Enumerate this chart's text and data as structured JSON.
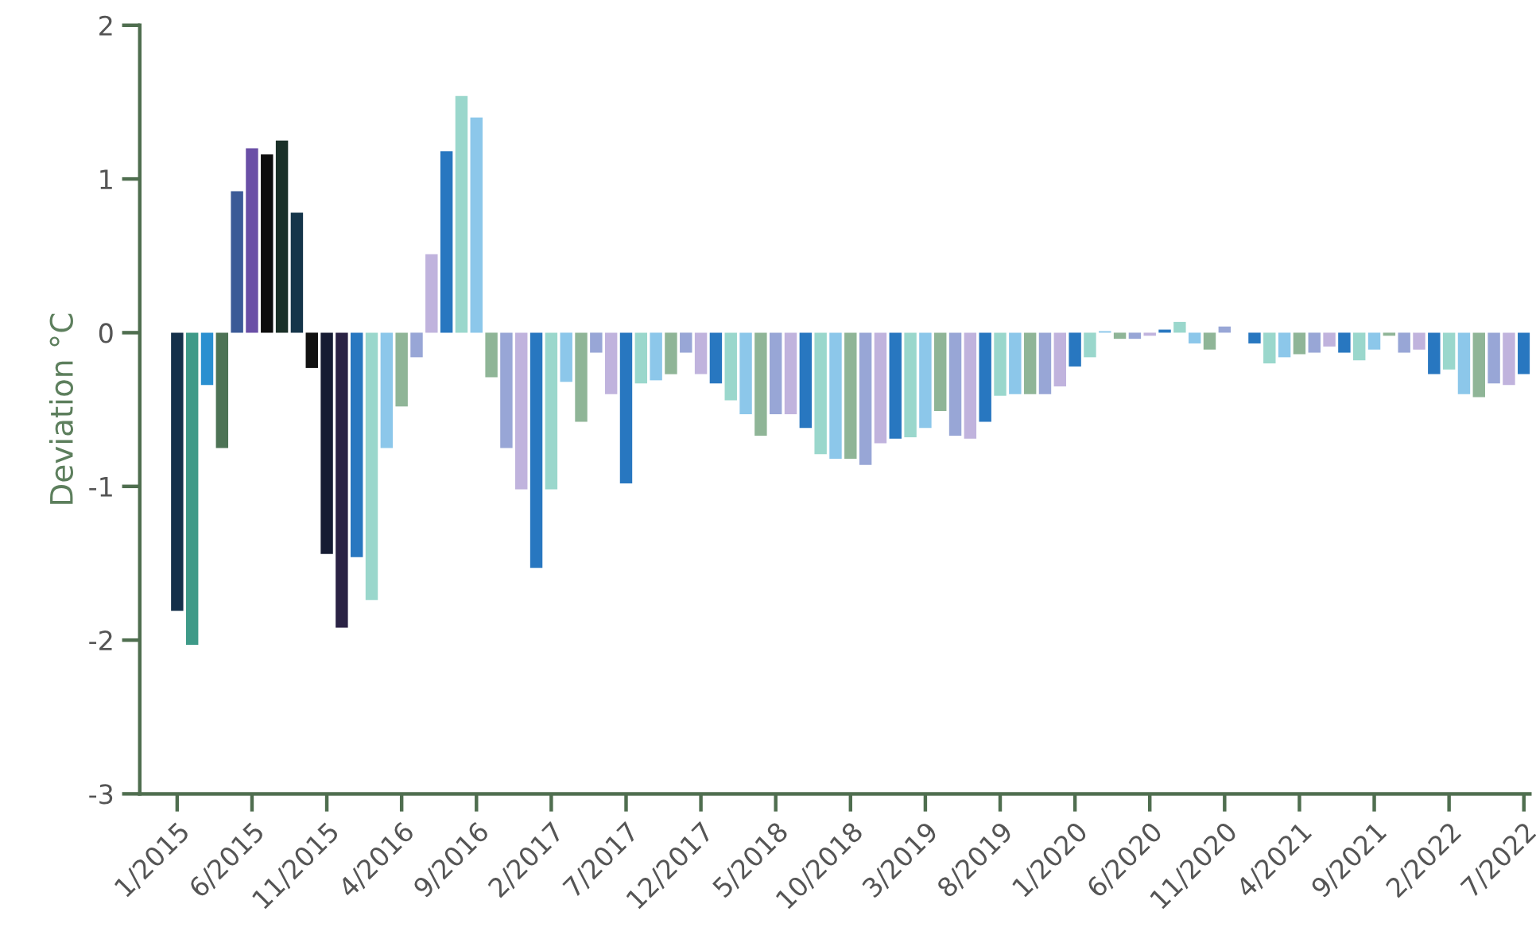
{
  "chart_data": {
    "type": "bar",
    "ylabel": "Deviation °C",
    "categories": [
      "1/2015",
      null,
      null,
      null,
      null,
      "6/2015",
      null,
      null,
      null,
      null,
      "11/2015",
      null,
      null,
      null,
      null,
      "4/2016",
      null,
      null,
      null,
      null,
      "9/2016",
      null,
      null,
      null,
      null,
      "2/2017",
      null,
      null,
      null,
      null,
      "7/2017",
      null,
      null,
      null,
      null,
      "12/2017",
      null,
      null,
      null,
      null,
      "5/2018",
      null,
      null,
      null,
      null,
      "10/2018",
      null,
      null,
      null,
      null,
      "3/2019",
      null,
      null,
      null,
      null,
      "8/2019",
      null,
      null,
      null,
      null,
      "1/2020",
      null,
      null,
      null,
      null,
      "6/2020",
      null,
      null,
      null,
      null,
      "11/2020",
      null,
      null,
      null,
      null,
      "4/2021",
      null,
      null,
      null,
      null,
      "9/2021",
      null,
      null,
      null,
      null,
      "2/2022",
      null,
      null,
      null,
      null,
      "7/2022"
    ],
    "values": [
      -1.81,
      -2.03,
      -0.34,
      -0.75,
      0.92,
      1.2,
      1.16,
      1.25,
      0.78,
      -0.23,
      -1.44,
      -1.92,
      -1.46,
      -1.74,
      -0.75,
      -0.48,
      -0.16,
      0.51,
      1.18,
      1.54,
      1.4,
      -0.29,
      -0.75,
      -1.02,
      -1.53,
      -1.02,
      -0.32,
      -0.58,
      -0.13,
      -0.4,
      -0.98,
      -0.33,
      -0.31,
      -0.27,
      -0.13,
      -0.27,
      -0.33,
      -0.44,
      -0.53,
      -0.67,
      -0.53,
      -0.53,
      -0.62,
      -0.79,
      -0.82,
      -0.82,
      -0.86,
      -0.72,
      -0.69,
      -0.68,
      -0.62,
      -0.51,
      -0.67,
      -0.69,
      -0.58,
      -0.41,
      -0.4,
      -0.4,
      -0.4,
      -0.35,
      -0.22,
      -0.16,
      0.01,
      -0.04,
      -0.04,
      -0.02,
      0.02,
      0.07,
      -0.07,
      -0.11,
      0.04,
      0,
      -0.07,
      -0.2,
      -0.16,
      -0.14,
      -0.13,
      -0.09,
      -0.13,
      -0.18,
      -0.11,
      -0.02,
      -0.13,
      -0.11,
      -0.27,
      -0.24,
      -0.4,
      -0.42,
      -0.33,
      -0.34,
      -0.27
    ],
    "colors": [
      "#14304a",
      "#3e9a88",
      "#2a8fd0",
      "#4d7355",
      "#3b5a97",
      "#6a4fa6",
      "#0d0d0d",
      "#1a3028",
      "#15354a",
      "#111111",
      "#161c33",
      "#2a2244",
      "#2877c0",
      "#9ad7cc",
      "#8cc7ea",
      "#8fb597",
      "#98a6d6",
      "#c0b3dd",
      "#2877c0",
      "#9ad7cc",
      "#8cc7ea",
      "#8fb597",
      "#98a6d6",
      "#c0b3dd",
      "#2877c0",
      "#9ad7cc",
      "#8cc7ea",
      "#8fb597",
      "#98a6d6",
      "#c0b3dd",
      "#2877c0",
      "#9ad7cc",
      "#8cc7ea",
      "#8fb597",
      "#98a6d6",
      "#c0b3dd",
      "#2877c0",
      "#9ad7cc",
      "#8cc7ea",
      "#8fb597",
      "#98a6d6",
      "#c0b3dd",
      "#2877c0",
      "#9ad7cc",
      "#8cc7ea",
      "#8fb597",
      "#98a6d6",
      "#c0b3dd",
      "#2877c0",
      "#9ad7cc",
      "#8cc7ea",
      "#8fb597",
      "#98a6d6",
      "#c0b3dd",
      "#2877c0",
      "#9ad7cc",
      "#8cc7ea",
      "#8fb597",
      "#98a6d6",
      "#c0b3dd",
      "#2877c0",
      "#9ad7cc",
      "#8cc7ea",
      "#8fb597",
      "#98a6d6",
      "#c0b3dd",
      "#2877c0",
      "#9ad7cc",
      "#8cc7ea",
      "#8fb597",
      "#98a6d6",
      "#c0b3dd",
      "#2877c0",
      "#9ad7cc",
      "#8cc7ea",
      "#8fb597",
      "#98a6d6",
      "#c0b3dd",
      "#2877c0",
      "#9ad7cc",
      "#8cc7ea",
      "#8fb597",
      "#98a6d6",
      "#c0b3dd",
      "#2877c0",
      "#9ad7cc",
      "#8cc7ea",
      "#8fb597",
      "#98a6d6",
      "#c0b3dd",
      "#2877c0"
    ],
    "ylim": [
      -3,
      2
    ],
    "yticks": [
      -3,
      -2,
      -1,
      0,
      1,
      2
    ],
    "grid": false
  }
}
